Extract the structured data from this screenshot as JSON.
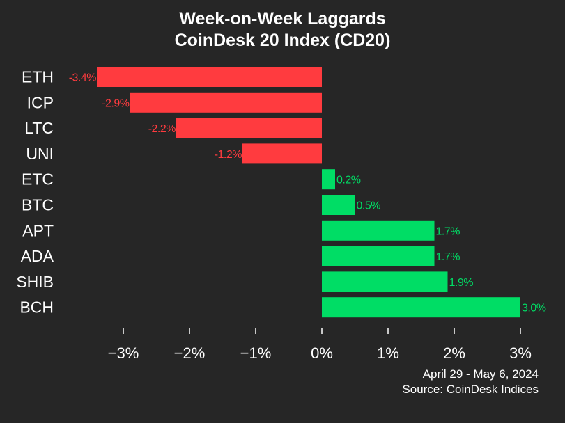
{
  "title": {
    "line1": "Week-on-Week Laggards",
    "line2": "CoinDesk 20 Index (CD20)"
  },
  "footer": {
    "date_range": "April 29 - May 6, 2024",
    "source": "Source: CoinDesk Indices"
  },
  "colors": {
    "background": "#262626",
    "negative": "#ff3b3f",
    "positive": "#00dd65",
    "text": "#ffffff"
  },
  "chart_data": {
    "type": "bar",
    "orientation": "horizontal",
    "title": "Week-on-Week Laggards CoinDesk 20 Index (CD20)",
    "categories": [
      "ETH",
      "ICP",
      "LTC",
      "UNI",
      "ETC",
      "BTC",
      "APT",
      "ADA",
      "SHIB",
      "BCH"
    ],
    "values": [
      -3.4,
      -2.9,
      -2.2,
      -1.2,
      0.2,
      0.5,
      1.7,
      1.7,
      1.9,
      3.0
    ],
    "data_labels": [
      "-3.4%",
      "-2.9%",
      "-2.2%",
      "-1.2%",
      "0.2%",
      "0.5%",
      "1.7%",
      "1.7%",
      "1.9%",
      "3.0%"
    ],
    "xticks": [
      -3,
      -2,
      -1,
      0,
      1,
      2,
      3
    ],
    "xtick_labels": [
      "−3%",
      "−2%",
      "−1%",
      "0%",
      "1%",
      "2%",
      "3%"
    ],
    "xlim": [
      -3.5,
      3.1
    ],
    "xlabel": "",
    "ylabel": "",
    "grid": false,
    "legend": "none"
  }
}
